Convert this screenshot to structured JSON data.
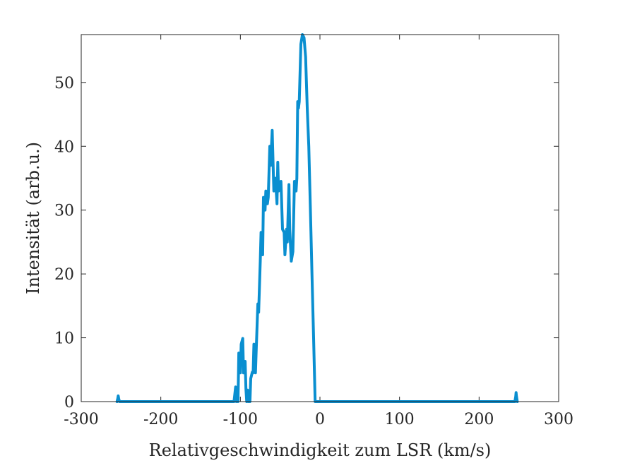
{
  "chart_data": {
    "type": "line",
    "title": "",
    "xlabel": "Relativgeschwindigkeit zum LSR (km/s)",
    "ylabel": "Intensität (arb.u.)",
    "xlim": [
      -300,
      300
    ],
    "ylim": [
      0,
      57.5
    ],
    "xticks": [
      -300,
      -200,
      -100,
      0,
      100,
      200,
      300
    ],
    "yticks": [
      0,
      10,
      20,
      30,
      40,
      50
    ],
    "grid": false,
    "box": true,
    "colors": {
      "line": "#0a8fd0",
      "axes": "#262626"
    },
    "series": [
      {
        "x": [
          -255,
          -254,
          -253.5,
          -253,
          -252,
          -108,
          -106,
          -105,
          -104,
          -103,
          -102,
          -100,
          -99,
          -97,
          -96,
          -94,
          -93,
          -92,
          -91,
          -90,
          -89,
          -88,
          -87,
          -85,
          -84,
          -83,
          -81,
          -80,
          -78,
          -77,
          -75,
          -74,
          -72,
          -71,
          -69,
          -68,
          -66,
          -65,
          -63,
          -62,
          -60,
          -58,
          -56,
          -54,
          -53,
          -52,
          -51,
          -50,
          -49,
          -47,
          -45,
          -44,
          -42,
          -41,
          -39,
          -38,
          -36,
          -34,
          -32,
          -30,
          -29,
          -28,
          -27,
          -26,
          -24,
          -22,
          -20,
          -18,
          -16,
          -14,
          -12,
          -10,
          -8,
          -6,
          -5,
          -4,
          -3,
          -1,
          0,
          1,
          2,
          4,
          6,
          8,
          10,
          245,
          246,
          246.5,
          247,
          248
        ],
        "values": [
          0,
          0.5,
          0.9,
          0.5,
          0,
          0,
          2.3,
          0,
          1.5,
          0,
          7.6,
          4.5,
          9,
          9.9,
          4.5,
          6.3,
          2,
          0,
          1.8,
          0,
          0.7,
          0,
          3.6,
          4.6,
          4.5,
          9,
          4.5,
          8.5,
          15.3,
          14,
          22,
          26.5,
          23,
          32,
          30,
          33,
          31,
          32,
          40,
          37,
          42.5,
          33,
          35,
          31,
          37.5,
          33,
          33.5,
          34,
          34.5,
          27,
          26.5,
          23,
          27,
          25,
          34,
          27,
          22,
          23.5,
          34.5,
          33,
          35,
          47,
          46,
          47,
          56,
          57.5,
          57,
          54,
          46,
          40,
          30,
          20,
          10,
          0,
          0,
          0,
          0,
          0,
          0,
          0,
          0,
          0,
          0,
          0,
          0,
          0,
          0.8,
          1.4,
          0.8,
          0
        ]
      }
    ]
  }
}
